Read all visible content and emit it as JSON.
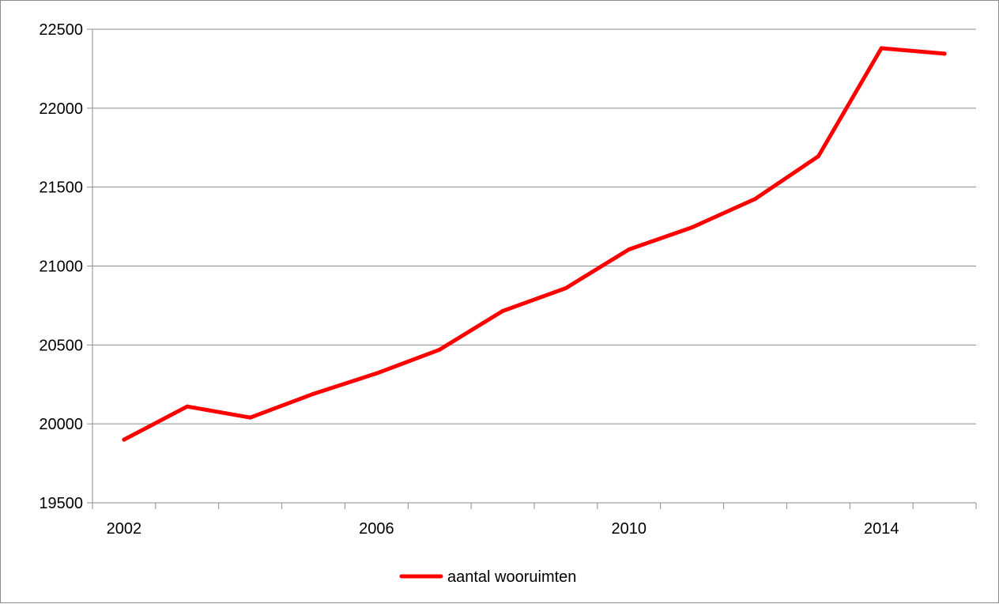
{
  "chart_data": {
    "type": "line",
    "title": "",
    "xlabel": "",
    "ylabel": "",
    "x": [
      2002,
      2003,
      2004,
      2005,
      2006,
      2007,
      2008,
      2009,
      2010,
      2011,
      2012,
      2013,
      2014,
      2015
    ],
    "x_tick_labels": [
      "2002",
      "2006",
      "2010",
      "2014"
    ],
    "ylim": [
      19500,
      22500
    ],
    "y_ticks": [
      19500,
      20000,
      20500,
      21000,
      21500,
      22000,
      22500
    ],
    "y_tick_labels": [
      "19500",
      "20000",
      "20500",
      "21000",
      "21500",
      "22000",
      "22500"
    ],
    "grid": "horizontal",
    "legend_position": "bottom",
    "series": [
      {
        "name": "aantal wooruimten",
        "color": "#ff0000",
        "values": [
          19900,
          20110,
          20040,
          20190,
          20320,
          20470,
          20715,
          20860,
          21105,
          21245,
          21425,
          21695,
          22380,
          22345
        ]
      }
    ]
  }
}
